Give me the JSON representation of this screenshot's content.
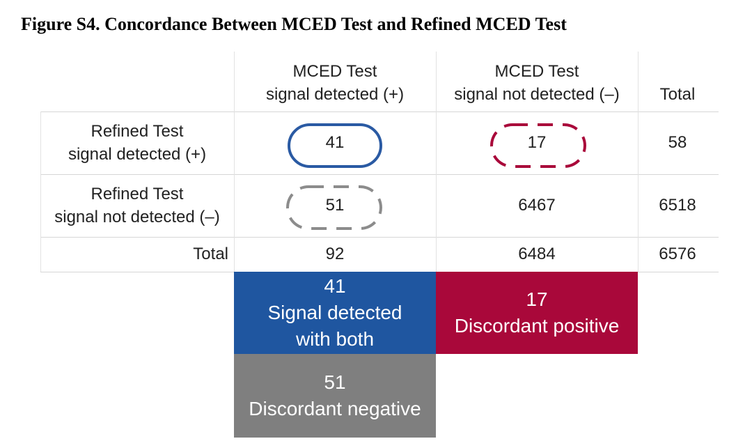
{
  "figure": {
    "title": "Figure S4. Concordance Between MCED Test and Refined MCED Test"
  },
  "table": {
    "columns": [
      {
        "line1": "MCED Test",
        "line2": "signal detected (+)"
      },
      {
        "line1": "MCED Test",
        "line2": "signal not detected (–)"
      },
      {
        "line1": "",
        "line2": "Total"
      }
    ],
    "rows": [
      {
        "line1": "Refined Test",
        "line2": "signal detected (+)",
        "values": [
          "41",
          "17",
          "58"
        ]
      },
      {
        "line1": "Refined Test",
        "line2": "signal not detected (–)",
        "values": [
          "51",
          "6467",
          "6518"
        ]
      },
      {
        "line1": "",
        "line2": "Total",
        "values": [
          "92",
          "6484",
          "6576"
        ]
      }
    ]
  },
  "highlight_boxes": {
    "both": {
      "count": "41",
      "line1": "Signal detected",
      "line2": "with both",
      "color": "#1f56a0"
    },
    "discordant_positive": {
      "count": "17",
      "label": "Discordant positive",
      "color": "#a9083a"
    },
    "discordant_negative": {
      "count": "51",
      "label": "Discordant negative",
      "color": "#7f7f7f"
    }
  },
  "colors": {
    "outline_blue": "#2a5aa3",
    "outline_red_dashed": "#a9083a",
    "outline_gray_dashed": "#8c8c8c"
  }
}
